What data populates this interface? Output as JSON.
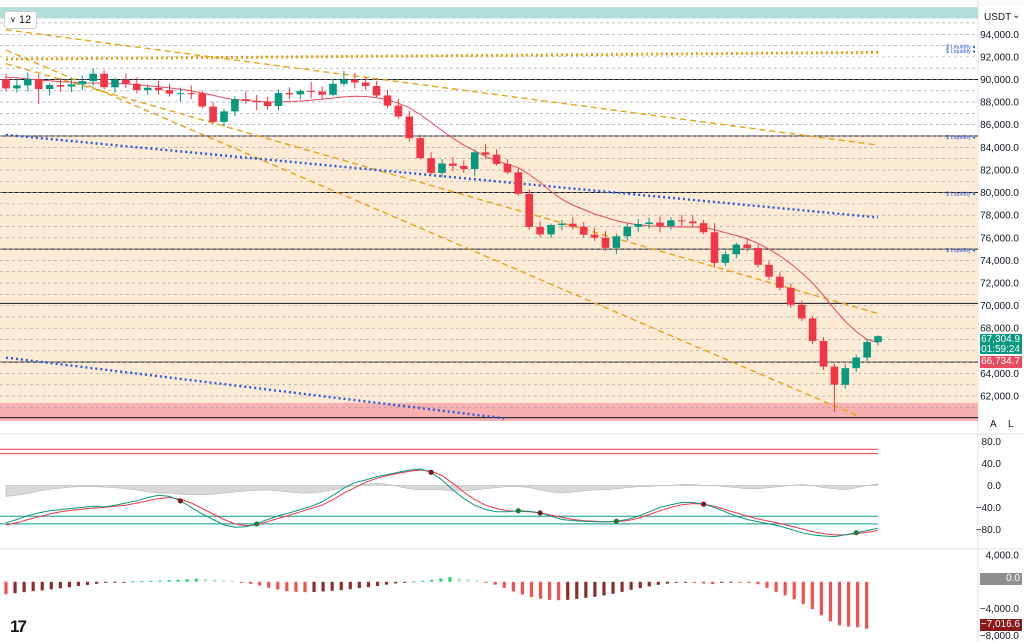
{
  "toolbar": {
    "interval_label": "12",
    "currency": "USDT",
    "scale_auto": "A",
    "scale_log": "L"
  },
  "price_badges": {
    "current_price": "67,304.9",
    "countdown": "01:59:24",
    "moving_average": "66,734.7"
  },
  "oscillator_badges": {
    "histogram_zero": "0.0",
    "histogram_value": "−7,016.6"
  },
  "liquidity_labels": [
    "$ Liquidity",
    "$ Liquidity",
    "$ Liquidity",
    "$ Liquidity",
    "$ Liquidity"
  ],
  "colors": {
    "up": "#089981",
    "down": "#f23645",
    "ma": "#e84a5f",
    "trend_gold": "#e8a317",
    "trend_blue": "#2b58e0",
    "teal_band": "#b2dfd9",
    "orange_band": "#fdebd5",
    "red_band": "#f7b0b0"
  },
  "chart_data": [
    {
      "type": "candlestick",
      "symbol_quote": "USDT",
      "interval": "12",
      "ylim": [
        59000,
        96500
      ],
      "y_ticks": [
        "94,000.0",
        "92,000.0",
        "90,000.0",
        "88,000.0",
        "86,000.0",
        "84,000.0",
        "82,000.0",
        "80,000.0",
        "78,000.0",
        "76,000.0",
        "74,000.0",
        "72,000.0",
        "70,000.0",
        "68,000.0",
        "64,000.0",
        "62,000.0"
      ],
      "y_tick_values": [
        94000,
        92000,
        90000,
        88000,
        86000,
        84000,
        82000,
        80000,
        78000,
        76000,
        74000,
        72000,
        70000,
        68000,
        64000,
        62000
      ],
      "horizontal_levels": [
        90000,
        85000,
        80000,
        75000,
        70200,
        65000,
        60100
      ],
      "band_teal": [
        95400,
        96400
      ],
      "band_orange": [
        61400,
        85000
      ],
      "band_red": [
        59800,
        61400
      ],
      "candles": [
        [
          90030,
          90470,
          88930,
          89210
        ],
        [
          89210,
          90080,
          88840,
          89480
        ],
        [
          89480,
          90610,
          88950,
          90050
        ],
        [
          90050,
          90430,
          87840,
          89160
        ],
        [
          89160,
          89670,
          88570,
          89510
        ],
        [
          89510,
          90140,
          88910,
          89370
        ],
        [
          89370,
          90110,
          88870,
          89570
        ],
        [
          89570,
          90350,
          89070,
          89860
        ],
        [
          89860,
          91000,
          89440,
          90510
        ],
        [
          90510,
          90850,
          89130,
          89310
        ],
        [
          89310,
          90150,
          88830,
          89980
        ],
        [
          89980,
          90540,
          89240,
          89620
        ],
        [
          89620,
          90180,
          88770,
          89070
        ],
        [
          89070,
          89560,
          88640,
          89270
        ],
        [
          89270,
          89900,
          88650,
          89060
        ],
        [
          89060,
          89620,
          88470,
          88750
        ],
        [
          88750,
          89280,
          88040,
          88790
        ],
        [
          88790,
          89490,
          88260,
          88770
        ],
        [
          88770,
          89020,
          87440,
          87610
        ],
        [
          87610,
          88010,
          86070,
          86250
        ],
        [
          86250,
          87410,
          85850,
          87180
        ],
        [
          87180,
          88510,
          86760,
          88260
        ],
        [
          88260,
          88950,
          87860,
          88100
        ],
        [
          88100,
          88640,
          87300,
          88000
        ],
        [
          88000,
          88490,
          87310,
          87650
        ],
        [
          87650,
          89140,
          87280,
          88800
        ],
        [
          88800,
          89310,
          88240,
          88680
        ],
        [
          88680,
          89150,
          88210,
          88990
        ],
        [
          88990,
          89800,
          88340,
          88930
        ],
        [
          88930,
          89360,
          88280,
          88650
        ],
        [
          88650,
          90080,
          88530,
          89620
        ],
        [
          89620,
          90760,
          89420,
          89980
        ],
        [
          89980,
          90580,
          89220,
          89730
        ],
        [
          89730,
          90190,
          89050,
          89420
        ],
        [
          89420,
          89870,
          88440,
          88590
        ],
        [
          88590,
          89100,
          87470,
          87690
        ],
        [
          87690,
          88260,
          86540,
          86730
        ],
        [
          86730,
          87220,
          84520,
          84810
        ],
        [
          84810,
          85130,
          82930,
          83050
        ],
        [
          83050,
          83560,
          81570,
          81740
        ],
        [
          81740,
          82960,
          81330,
          82570
        ],
        [
          82570,
          83130,
          81890,
          82360
        ],
        [
          82360,
          82840,
          81730,
          82080
        ],
        [
          82080,
          83810,
          81420,
          83560
        ],
        [
          83560,
          84280,
          82960,
          83350
        ],
        [
          83350,
          83810,
          82380,
          82530
        ],
        [
          82530,
          82970,
          81630,
          81790
        ],
        [
          81790,
          82140,
          79720,
          79890
        ],
        [
          79890,
          80290,
          76710,
          76960
        ],
        [
          76960,
          77460,
          76070,
          76300
        ],
        [
          76300,
          77240,
          75970,
          77130
        ],
        [
          77130,
          77580,
          76680,
          77250
        ],
        [
          77250,
          77810,
          76730,
          76980
        ],
        [
          76980,
          77400,
          76010,
          76280
        ],
        [
          76280,
          76860,
          75720,
          76010
        ],
        [
          76010,
          76600,
          74840,
          75110
        ],
        [
          75110,
          76360,
          74560,
          76130
        ],
        [
          76130,
          77230,
          75760,
          76970
        ],
        [
          76970,
          77670,
          76490,
          77220
        ],
        [
          77220,
          77790,
          76810,
          77350
        ],
        [
          77350,
          77890,
          76480,
          77040
        ],
        [
          77040,
          77810,
          76730,
          77540
        ],
        [
          77540,
          78040,
          76990,
          77450
        ],
        [
          77450,
          78030,
          76950,
          77290
        ],
        [
          77290,
          77590,
          76320,
          76490
        ],
        [
          76490,
          77300,
          73370,
          73780
        ],
        [
          73780,
          74820,
          73520,
          74550
        ],
        [
          74550,
          75580,
          74180,
          75400
        ],
        [
          75400,
          75980,
          74780,
          75100
        ],
        [
          75100,
          75420,
          73360,
          73610
        ],
        [
          73610,
          73920,
          72290,
          72560
        ],
        [
          72560,
          72960,
          71340,
          71580
        ],
        [
          71580,
          71960,
          69820,
          70080
        ],
        [
          70080,
          70430,
          68640,
          68870
        ],
        [
          68870,
          69070,
          66600,
          66880
        ],
        [
          66880,
          67200,
          64320,
          64600
        ],
        [
          64600,
          64880,
          60600,
          63010
        ],
        [
          63010,
          64840,
          62670,
          64470
        ],
        [
          64470,
          65650,
          64140,
          65410
        ],
        [
          65410,
          67050,
          65110,
          66780
        ],
        [
          66780,
          67380,
          66470,
          67300
        ]
      ],
      "moving_average": [
        90210,
        90150,
        90050,
        89950,
        89890,
        89810,
        89750,
        89700,
        89690,
        89680,
        89650,
        89620,
        89550,
        89450,
        89360,
        89260,
        89140,
        89000,
        88800,
        88600,
        88380,
        88210,
        88150,
        88080,
        88020,
        88020,
        88050,
        88090,
        88160,
        88260,
        88360,
        88460,
        88510,
        88500,
        88400,
        88200,
        87900,
        87500,
        86900,
        86200,
        85500,
        84800,
        84200,
        83700,
        83200,
        82800,
        82500,
        82200,
        81600,
        80900,
        80100,
        79400,
        78900,
        78500,
        78100,
        77800,
        77500,
        77300,
        77150,
        77050,
        77000,
        76980,
        76950,
        76960,
        76930,
        76700,
        76450,
        76200,
        75900,
        75500,
        75000,
        74400,
        73700,
        72900,
        72000,
        70900,
        69700,
        68600,
        67700,
        67000,
        66734.7
      ],
      "trendlines_gold": [
        {
          "p1": [
            0,
            94400
          ],
          "p2": [
            80,
            84200
          ]
        },
        {
          "p1": [
            0,
            91800
          ],
          "p2": [
            80,
            92400
          ]
        },
        {
          "p1": [
            0,
            91400
          ],
          "p2": [
            80,
            69300
          ]
        },
        {
          "p1": [
            0,
            92600
          ],
          "p2": [
            78,
            60300
          ]
        }
      ],
      "trendlines_blue": [
        {
          "p1": [
            0,
            85100
          ],
          "p2": [
            80,
            77800
          ]
        },
        {
          "p1": [
            0,
            65400
          ],
          "p2": [
            46,
            60000
          ]
        }
      ]
    },
    {
      "type": "line",
      "name": "oscillator",
      "ylim": [
        -112,
        90
      ],
      "y_ticks": [
        "80.0",
        "40.0",
        "0.0",
        "−40.0",
        "−80.0"
      ],
      "y_tick_values": [
        80,
        40,
        0,
        -40,
        -80
      ],
      "bands": [
        66,
        58,
        -56,
        -70
      ],
      "fast": [
        -68,
        -62,
        -55,
        -50,
        -46,
        -44,
        -42,
        -40,
        -38,
        -39,
        -36,
        -32,
        -28,
        -22,
        -18,
        -20,
        -28,
        -40,
        -52,
        -62,
        -72,
        -76,
        -75,
        -70,
        -62,
        -55,
        -50,
        -44,
        -38,
        -30,
        -18,
        -5,
        5,
        10,
        16,
        20,
        24,
        28,
        30,
        24,
        10,
        -8,
        -24,
        -36,
        -44,
        -48,
        -48,
        -46,
        -47,
        -50,
        -56,
        -62,
        -64,
        -65,
        -66,
        -66,
        -65,
        -62,
        -56,
        -48,
        -40,
        -35,
        -31,
        -31,
        -34,
        -40,
        -48,
        -56,
        -62,
        -66,
        -70,
        -74,
        -80,
        -86,
        -90,
        -92,
        -93,
        -90,
        -86,
        -82,
        -78
      ],
      "slow": [
        -72,
        -68,
        -62,
        -57,
        -52,
        -48,
        -45,
        -43,
        -41,
        -40,
        -38,
        -36,
        -32,
        -28,
        -24,
        -22,
        -25,
        -32,
        -42,
        -52,
        -62,
        -70,
        -73,
        -72,
        -66,
        -60,
        -54,
        -48,
        -42,
        -36,
        -26,
        -14,
        -4,
        6,
        13,
        18,
        22,
        26,
        28,
        26,
        18,
        4,
        -12,
        -26,
        -36,
        -42,
        -46,
        -47,
        -48,
        -50,
        -54,
        -58,
        -62,
        -64,
        -65,
        -66,
        -66,
        -64,
        -60,
        -53,
        -46,
        -40,
        -35,
        -33,
        -34,
        -38,
        -44,
        -50,
        -56,
        -61,
        -65,
        -69,
        -74,
        -79,
        -84,
        -88,
        -90,
        -90,
        -88,
        -85,
        -82
      ],
      "histogram": [
        -20,
        -18,
        -15,
        -10,
        -7,
        -5,
        -3,
        -2,
        -2,
        -3,
        -4,
        -6,
        -8,
        -12,
        -14,
        -14,
        -16,
        -17,
        -17,
        -16,
        -14,
        -12,
        -10,
        -9,
        -8,
        -10,
        -12,
        -14,
        -14,
        -12,
        -8,
        -4,
        0,
        2,
        4,
        2,
        -2,
        -6,
        -8,
        -8,
        -8,
        -10,
        -10,
        -8,
        -6,
        -4,
        -2,
        -2,
        -4,
        -8,
        -12,
        -14,
        -12,
        -10,
        -8,
        -8,
        -6,
        -4,
        -2,
        -2,
        0,
        0,
        2,
        2,
        0,
        0,
        -2,
        -4,
        -6,
        -6,
        -4,
        -2,
        0,
        2,
        0,
        -4,
        -6,
        -8,
        -4,
        0,
        3
      ]
    },
    {
      "type": "bar",
      "name": "histogram",
      "ylim": [
        -8400,
        4600
      ],
      "y_ticks": [
        "4,000.0",
        "−4,000.0",
        "−8,000.0"
      ],
      "y_tick_values": [
        4000,
        -4000,
        -8000
      ],
      "values": [
        -1850,
        -1700,
        -1550,
        -1400,
        -1280,
        -1130,
        -980,
        -820,
        -640,
        -470,
        -300,
        -160,
        -70,
        -50,
        80,
        90,
        140,
        190,
        260,
        300,
        390,
        470,
        400,
        320,
        220,
        130,
        -80,
        -300,
        -560,
        -900,
        -1150,
        -1400,
        -1500,
        -1550,
        -1520,
        -1450,
        -1350,
        -1240,
        -1100,
        -950,
        -800,
        -640,
        -430,
        -250,
        -100,
        60,
        150,
        300,
        500,
        700,
        560,
        380,
        190,
        -90,
        -420,
        -900,
        -1450,
        -1900,
        -2300,
        -2550,
        -2700,
        -2750,
        -2700,
        -2550,
        -2400,
        -2250,
        -2050,
        -1800,
        -1500,
        -1200,
        -950,
        -700,
        -450,
        -280,
        -150,
        -80,
        -120,
        -260,
        -350,
        -160,
        -60,
        -150,
        -190,
        -370,
        -900,
        -1500,
        -2050,
        -2600,
        -3300,
        -4100,
        -5000,
        -5900,
        -6500,
        -6700,
        -6800,
        -7016.6
      ]
    }
  ]
}
